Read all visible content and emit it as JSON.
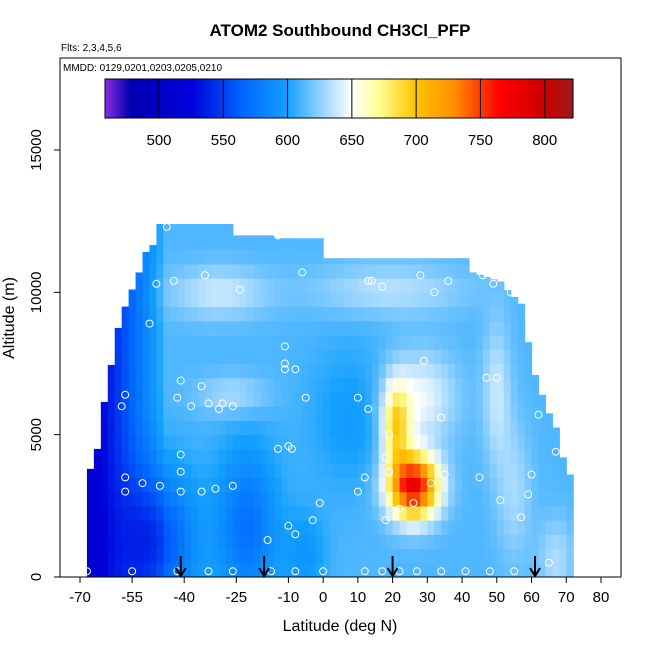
{
  "chart_data": {
    "type": "heatmap",
    "title": "ATOM2 Southbound CH3Cl_PFP",
    "flights_note": "Flts: 2,3,4,5,6",
    "dates_note": "MMDD: 0129,0201,0203,0205,0210",
    "xlabel": "Latitude (deg N)",
    "ylabel": "Altitude (m)",
    "xlim": [
      -70,
      84
    ],
    "ylim": [
      0,
      17500
    ],
    "x_ticks": [
      -70,
      -55,
      -40,
      -25,
      -10,
      0,
      10,
      20,
      30,
      40,
      50,
      60,
      70,
      80
    ],
    "x_tick_labels": [
      "-70",
      "-55",
      "-40",
      "-25",
      "-10",
      "0",
      "10",
      "20",
      "30",
      "40",
      "50",
      "60",
      "70",
      "80"
    ],
    "y_ticks": [
      0,
      5000,
      10000,
      15000
    ],
    "y_tick_labels": [
      "0",
      "5000",
      "10000",
      "15000"
    ],
    "colorbar": {
      "range": [
        458,
        822
      ],
      "ticks": [
        500,
        550,
        600,
        650,
        700,
        750,
        800
      ],
      "tick_labels": [
        "500",
        "550",
        "600",
        "650",
        "700",
        "750",
        "800"
      ],
      "color_stops": [
        {
          "value": 458,
          "color": "#8a2be2"
        },
        {
          "value": 478,
          "color": "#0000b0"
        },
        {
          "value": 525,
          "color": "#0000dd"
        },
        {
          "value": 565,
          "color": "#0066ff"
        },
        {
          "value": 600,
          "color": "#14a0ff"
        },
        {
          "value": 625,
          "color": "#8fd0ff"
        },
        {
          "value": 650,
          "color": "#ffffff"
        },
        {
          "value": 670,
          "color": "#ffff9a"
        },
        {
          "value": 700,
          "color": "#ffc400"
        },
        {
          "value": 730,
          "color": "#ff8c00"
        },
        {
          "value": 765,
          "color": "#ff0000"
        },
        {
          "value": 800,
          "color": "#cc0000"
        },
        {
          "value": 822,
          "color": "#9e1a1a"
        }
      ]
    },
    "profile_marker_latitudes": [
      -41,
      -17,
      20,
      61
    ],
    "sample_points": [
      [
        -68,
        200
      ],
      [
        -55,
        200
      ],
      [
        -42,
        200
      ],
      [
        -33,
        200
      ],
      [
        -26,
        200
      ],
      [
        -15,
        200
      ],
      [
        -8,
        200
      ],
      [
        0,
        200
      ],
      [
        12,
        200
      ],
      [
        17,
        200
      ],
      [
        22,
        200
      ],
      [
        27,
        200
      ],
      [
        34,
        200
      ],
      [
        41,
        200
      ],
      [
        48,
        200
      ],
      [
        55,
        200
      ],
      [
        65,
        500
      ],
      [
        -57,
        3000
      ],
      [
        -52,
        3300
      ],
      [
        -47,
        3200
      ],
      [
        -41,
        3000
      ],
      [
        -35,
        3000
      ],
      [
        -31,
        3100
      ],
      [
        -57,
        3500
      ],
      [
        -41,
        3700
      ],
      [
        -41,
        4300
      ],
      [
        -26,
        3200
      ],
      [
        -9,
        4500
      ],
      [
        -10,
        4600
      ],
      [
        -13,
        4500
      ],
      [
        -10,
        1800
      ],
      [
        -3,
        2000
      ],
      [
        -1,
        2600
      ],
      [
        -16,
        1300
      ],
      [
        -8,
        1500
      ],
      [
        -67,
        5800
      ],
      [
        -58,
        6000
      ],
      [
        -57,
        6400
      ],
      [
        -42,
        6300
      ],
      [
        -38,
        6000
      ],
      [
        -33,
        6100
      ],
      [
        -29,
        6100
      ],
      [
        -26,
        6000
      ],
      [
        -41,
        6900
      ],
      [
        -35,
        6700
      ],
      [
        -30,
        5900
      ],
      [
        -5,
        6300
      ],
      [
        -8,
        7300
      ],
      [
        -11,
        7500
      ],
      [
        -11,
        7300
      ],
      [
        -59,
        9800
      ],
      [
        -48,
        10300
      ],
      [
        -43,
        10400
      ],
      [
        -34,
        10600
      ],
      [
        -24,
        10100
      ],
      [
        -13,
        12000
      ],
      [
        -6,
        10700
      ],
      [
        -11,
        8100
      ],
      [
        -50,
        8900
      ],
      [
        -61,
        11000
      ],
      [
        -45,
        12300
      ],
      [
        13,
        10400
      ],
      [
        14,
        10400
      ],
      [
        17,
        10200
      ],
      [
        28,
        10600
      ],
      [
        32,
        10000
      ],
      [
        36,
        10400
      ],
      [
        46,
        10600
      ],
      [
        49,
        10300
      ],
      [
        54,
        10000
      ],
      [
        61,
        9700
      ],
      [
        29,
        7600
      ],
      [
        25,
        6700
      ],
      [
        19,
        6200
      ],
      [
        10,
        6300
      ],
      [
        13,
        5900
      ],
      [
        47,
        7000
      ],
      [
        50,
        7000
      ],
      [
        62,
        5700
      ],
      [
        67,
        4400
      ],
      [
        60,
        3600
      ],
      [
        59,
        2900
      ],
      [
        57,
        2100
      ],
      [
        51,
        2700
      ],
      [
        45,
        3500
      ],
      [
        35,
        3600
      ],
      [
        31,
        3300
      ],
      [
        26,
        2600
      ],
      [
        22,
        2400
      ],
      [
        18,
        2000
      ],
      [
        12,
        3500
      ],
      [
        10,
        3000
      ],
      [
        19,
        3700
      ],
      [
        18,
        4200
      ],
      [
        19,
        5000
      ],
      [
        34,
        5600
      ]
    ]
  }
}
